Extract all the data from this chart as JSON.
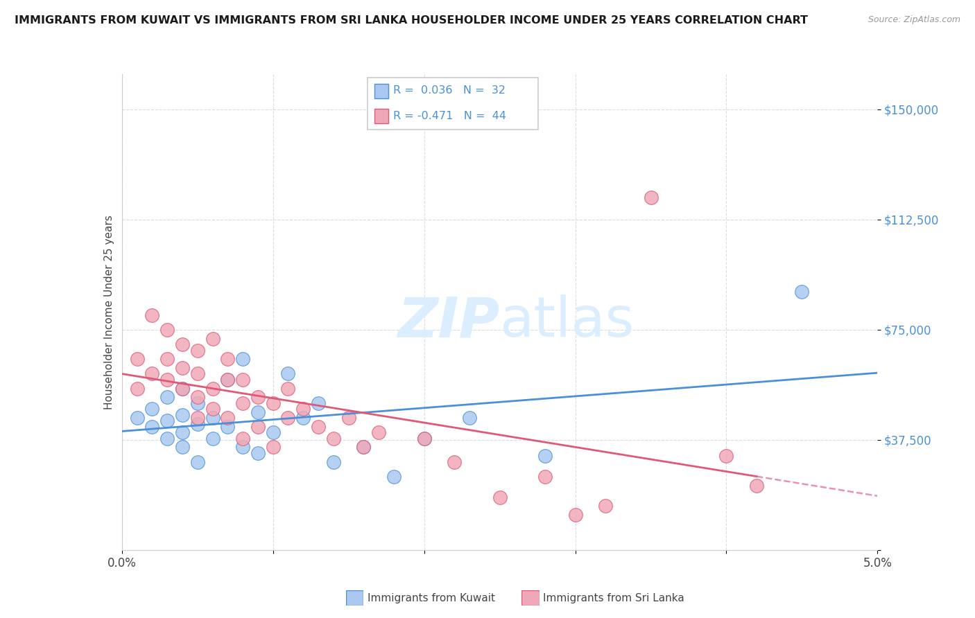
{
  "title": "IMMIGRANTS FROM KUWAIT VS IMMIGRANTS FROM SRI LANKA HOUSEHOLDER INCOME UNDER 25 YEARS CORRELATION CHART",
  "source": "Source: ZipAtlas.com",
  "ylabel": "Householder Income Under 25 years",
  "legend_label_kuwait": "Immigrants from Kuwait",
  "legend_label_srilanka": "Immigrants from Sri Lanka",
  "r_kuwait": 0.036,
  "n_kuwait": 32,
  "r_srilanka": -0.471,
  "n_srilanka": 44,
  "xlim": [
    0.0,
    0.05
  ],
  "ylim": [
    0,
    162000
  ],
  "yticks": [
    0,
    37500,
    75000,
    112500,
    150000
  ],
  "ytick_labels": [
    "",
    "$37,500",
    "$75,000",
    "$112,500",
    "$150,000"
  ],
  "xticks": [
    0.0,
    0.01,
    0.02,
    0.03,
    0.04,
    0.05
  ],
  "xtick_labels": [
    "0.0%",
    "",
    "",
    "",
    "",
    "5.0%"
  ],
  "color_kuwait": "#aac8f0",
  "color_srilanka": "#f0a8b8",
  "line_color_kuwait": "#4a90d9",
  "line_color_srilanka": "#e05878",
  "watermark_color": "#daeeff",
  "background_color": "#ffffff",
  "kuwait_x": [
    0.001,
    0.002,
    0.002,
    0.003,
    0.003,
    0.003,
    0.004,
    0.004,
    0.004,
    0.004,
    0.005,
    0.005,
    0.005,
    0.006,
    0.006,
    0.007,
    0.007,
    0.008,
    0.008,
    0.009,
    0.009,
    0.01,
    0.011,
    0.012,
    0.013,
    0.014,
    0.016,
    0.018,
    0.02,
    0.023,
    0.028,
    0.045
  ],
  "kuwait_y": [
    45000,
    42000,
    48000,
    38000,
    52000,
    44000,
    35000,
    40000,
    55000,
    46000,
    30000,
    43000,
    50000,
    38000,
    45000,
    58000,
    42000,
    65000,
    35000,
    47000,
    33000,
    40000,
    60000,
    45000,
    50000,
    30000,
    35000,
    25000,
    38000,
    45000,
    32000,
    88000
  ],
  "srilanka_x": [
    0.001,
    0.001,
    0.002,
    0.002,
    0.003,
    0.003,
    0.003,
    0.004,
    0.004,
    0.004,
    0.005,
    0.005,
    0.005,
    0.005,
    0.006,
    0.006,
    0.006,
    0.007,
    0.007,
    0.007,
    0.008,
    0.008,
    0.008,
    0.009,
    0.009,
    0.01,
    0.01,
    0.011,
    0.011,
    0.012,
    0.013,
    0.014,
    0.015,
    0.016,
    0.017,
    0.02,
    0.022,
    0.025,
    0.028,
    0.032,
    0.035,
    0.04,
    0.042,
    0.03
  ],
  "srilanka_y": [
    65000,
    55000,
    80000,
    60000,
    75000,
    65000,
    58000,
    70000,
    55000,
    62000,
    68000,
    52000,
    45000,
    60000,
    55000,
    48000,
    72000,
    58000,
    45000,
    65000,
    50000,
    38000,
    58000,
    42000,
    52000,
    50000,
    35000,
    55000,
    45000,
    48000,
    42000,
    38000,
    45000,
    35000,
    40000,
    38000,
    30000,
    18000,
    25000,
    15000,
    120000,
    32000,
    22000,
    12000
  ]
}
